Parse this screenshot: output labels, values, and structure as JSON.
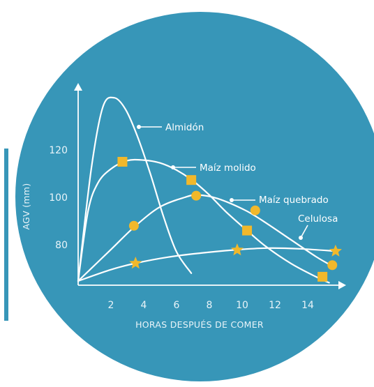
{
  "colors": {
    "background_circle": "#3796b8",
    "curve": "#ffffff",
    "marker": "#f1b82b",
    "text": "#e9f4f9"
  },
  "chart_data": {
    "type": "line",
    "xlabel": "HORAS DESPUÉS DE COMER",
    "ylabel": "AGV (mm)",
    "x_ticks": [
      2,
      4,
      6,
      8,
      10,
      12,
      14
    ],
    "y_ticks": [
      80,
      100,
      120
    ],
    "xlim": [
      0,
      16
    ],
    "ylim": [
      62,
      145
    ],
    "grid": false,
    "series": [
      {
        "name": "Almidón",
        "marker": "none",
        "x": [
          0,
          0.8,
          1.5,
          2.2,
          2.9,
          3.6,
          4.4,
          5.2,
          6.0,
          6.9
        ],
        "y": [
          64.7,
          112,
          138,
          142,
          137,
          126,
          110,
          92,
          77,
          68
        ]
      },
      {
        "name": "Maíz molido",
        "marker": "square",
        "x": [
          0,
          0.6,
          1.2,
          2.0,
          3.0,
          4.0,
          5.0,
          6.0,
          7.0,
          8.0,
          9.0,
          10.3,
          11.5,
          13.0,
          14.5,
          15.3
        ],
        "y": [
          64.7,
          94,
          106,
          112,
          115.5,
          115.7,
          114.5,
          111.5,
          107,
          101,
          94,
          86,
          79,
          72,
          66.5,
          64
        ],
        "markers_x": [
          2.7,
          6.9,
          10.3,
          14.9
        ],
        "markers_y": [
          115,
          107.3,
          86,
          66.5
        ]
      },
      {
        "name": "Maíz quebrado",
        "marker": "circle",
        "x": [
          0,
          2.0,
          3.5,
          5.0,
          6.5,
          7.3,
          8.5,
          10.2,
          11.5,
          13.0,
          14.5,
          15.5
        ],
        "y": [
          64.7,
          78,
          88,
          96,
          100,
          101,
          99.5,
          94.5,
          89,
          82,
          75,
          71
        ],
        "markers_x": [
          3.4,
          7.2,
          10.8,
          15.5
        ],
        "markers_y": [
          88,
          100.7,
          94.5,
          71.4
        ]
      },
      {
        "name": "Celulosa",
        "marker": "star",
        "x": [
          0,
          2.0,
          3.5,
          5.5,
          7.5,
          9.5,
          11.5,
          13.5,
          15.7
        ],
        "y": [
          64.7,
          69.5,
          72.2,
          74.8,
          76.5,
          77.8,
          78.6,
          78.3,
          77.3
        ],
        "markers_x": [
          3.5,
          9.7,
          15.7
        ],
        "markers_y": [
          72.2,
          77.8,
          77.3
        ]
      }
    ]
  }
}
